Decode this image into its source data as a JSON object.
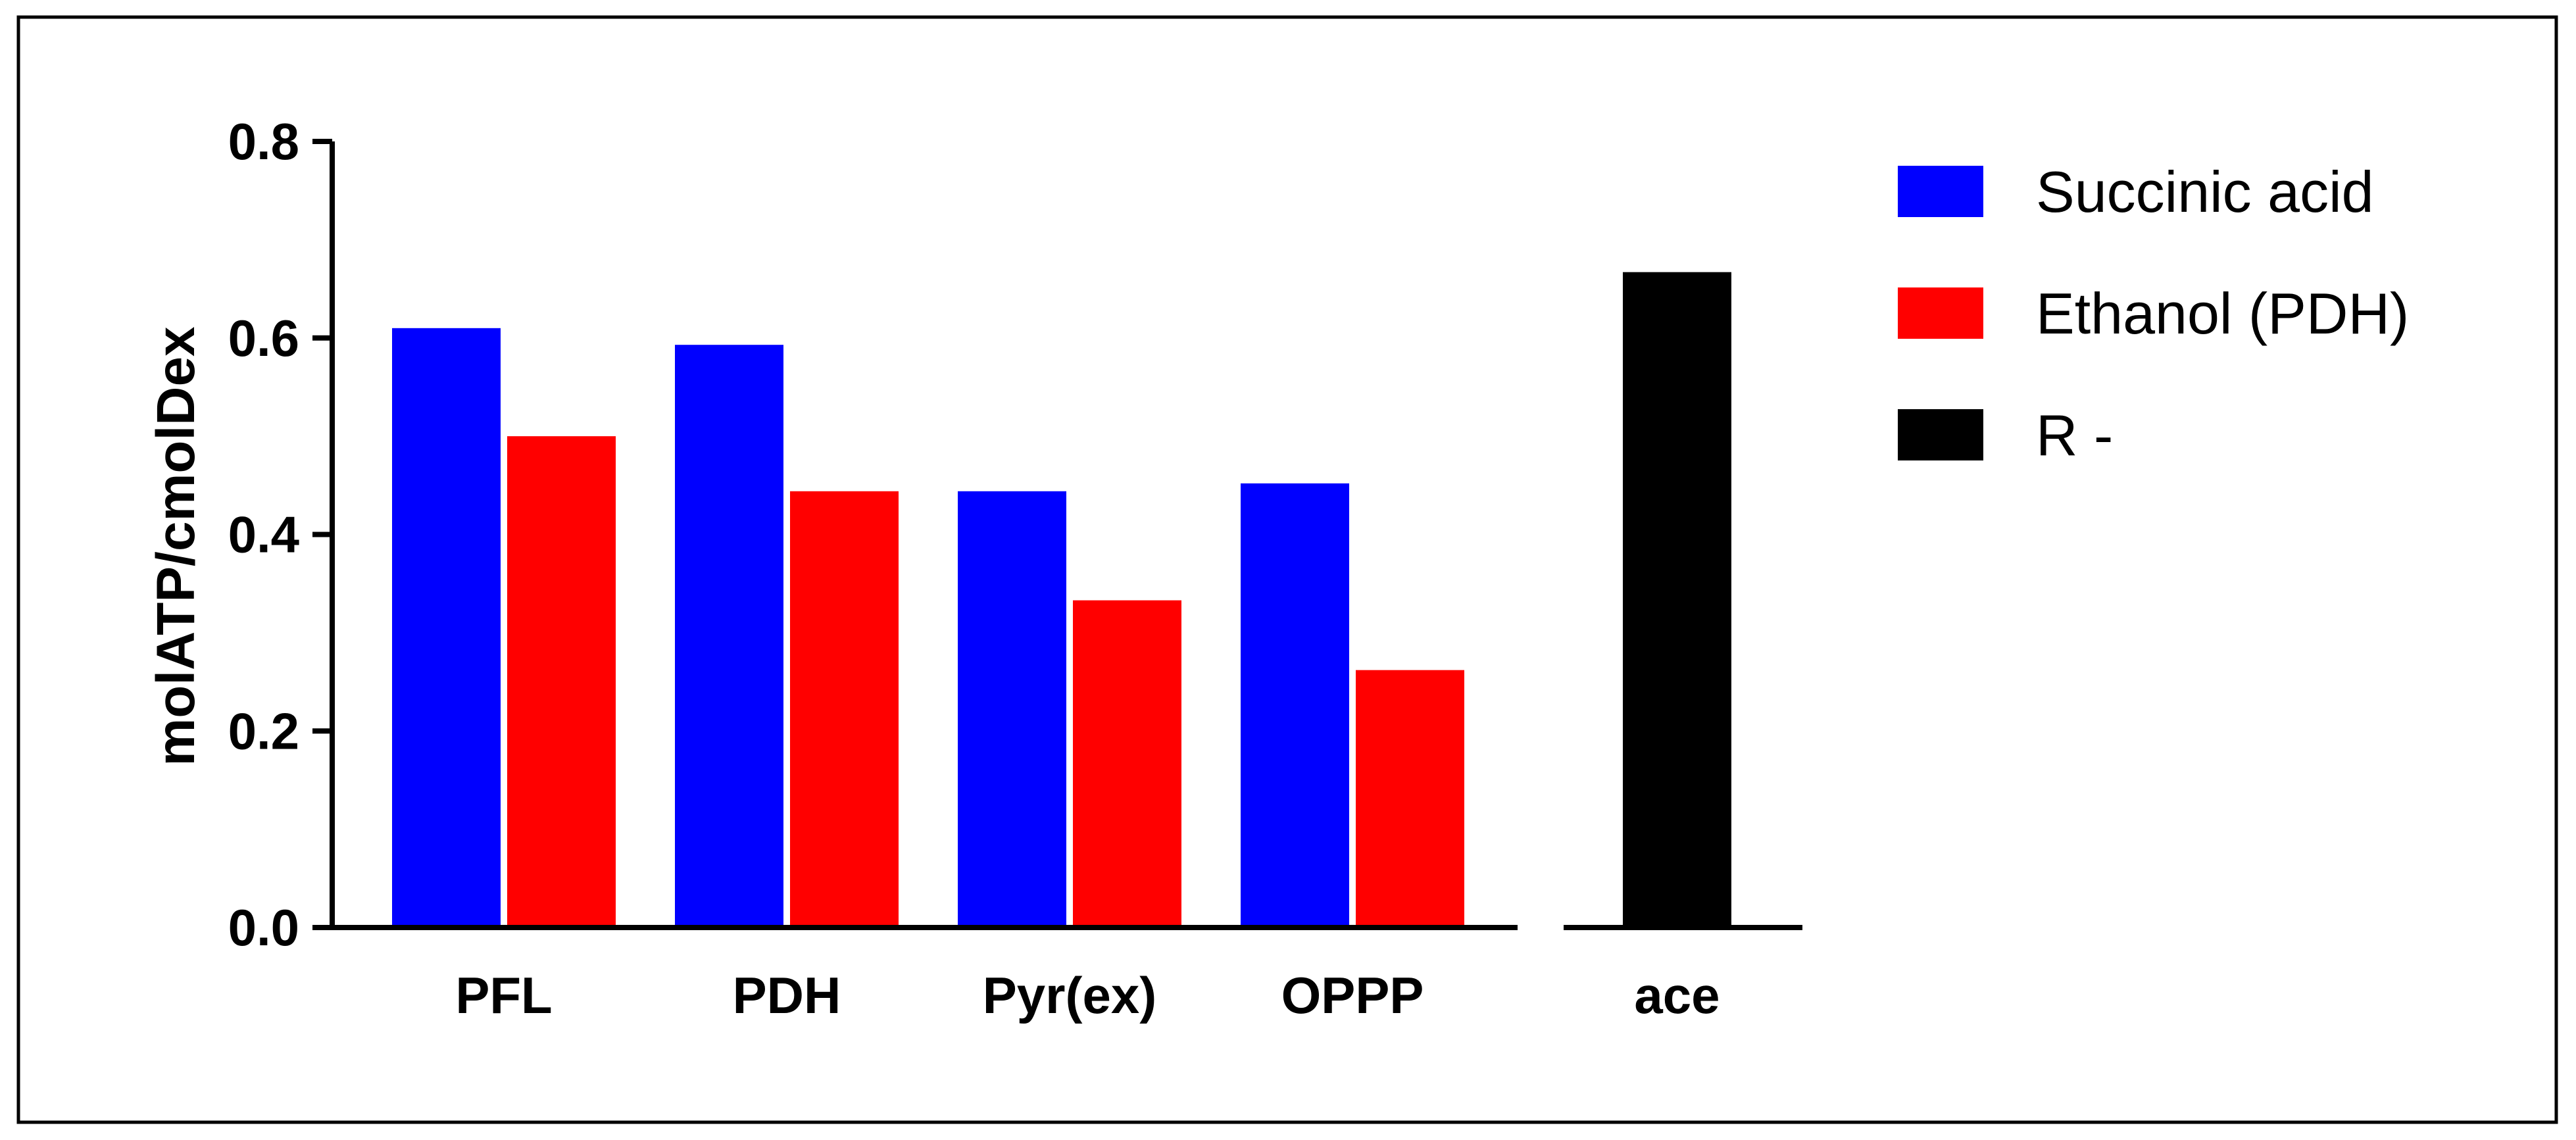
{
  "chart_data": {
    "type": "bar",
    "title": "",
    "xlabel": "",
    "ylabel": "molATP/cmolDex",
    "ylim": [
      0,
      0.8
    ],
    "yticks": [
      "0.0",
      "0.2",
      "0.4",
      "0.6",
      "0.8"
    ],
    "grid": false,
    "legend_position": "top-right",
    "groups": [
      {
        "category": "PFL",
        "bars": [
          {
            "series": "Succinic acid",
            "value": 0.61
          },
          {
            "series": "Ethanol (PDH)",
            "value": 0.5
          }
        ]
      },
      {
        "category": "PDH",
        "bars": [
          {
            "series": "Succinic acid",
            "value": 0.593
          },
          {
            "series": "Ethanol (PDH)",
            "value": 0.444
          }
        ]
      },
      {
        "category": "Pyr(ex)",
        "bars": [
          {
            "series": "Succinic acid",
            "value": 0.444
          },
          {
            "series": "Ethanol (PDH)",
            "value": 0.333
          }
        ]
      },
      {
        "category": "OPPP",
        "bars": [
          {
            "series": "Succinic acid",
            "value": 0.452
          },
          {
            "series": "Ethanol (PDH)",
            "value": 0.262
          }
        ]
      },
      {
        "category": "ace",
        "bars": [
          {
            "series": "R -",
            "value": 0.667
          }
        ]
      }
    ],
    "series": [
      {
        "name": "Succinic acid",
        "color": "#0000ff"
      },
      {
        "name": "Ethanol (PDH)",
        "color": "#ff0000"
      },
      {
        "name": "R -",
        "color": "#000000"
      }
    ]
  }
}
